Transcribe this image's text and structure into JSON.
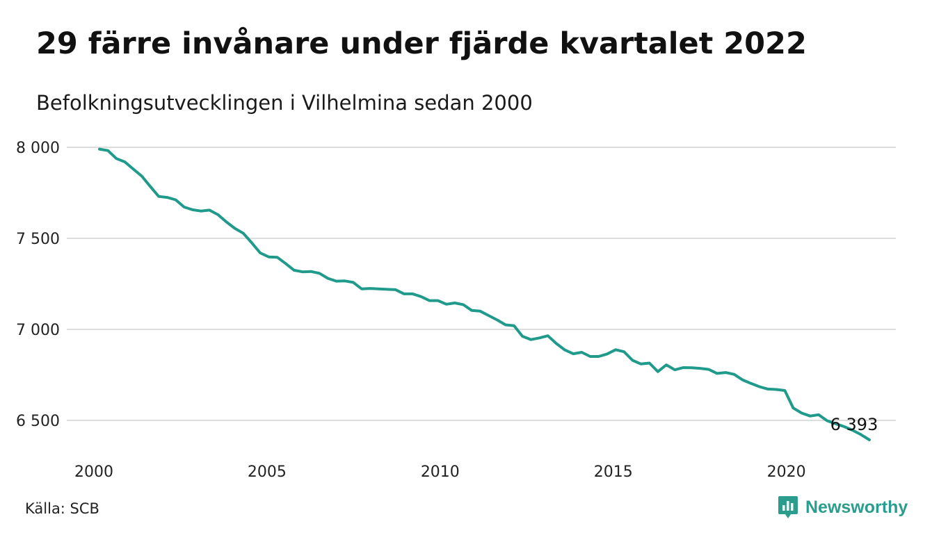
{
  "header": {
    "title": "29 färre invånare under fjärde kvartalet 2022",
    "subtitle": "Befolkningsutvecklingen i Vilhelmina sedan 2000"
  },
  "footer": {
    "source": "Källa: SCB",
    "brand": "Newsworthy",
    "brand_icon": "newsworthy-logo-icon",
    "brand_color": "#2a9d8f"
  },
  "chart_data": {
    "type": "line",
    "x_start": 2000.0,
    "x_step": 0.25,
    "xlim": [
      2000,
      2023
    ],
    "ylim": [
      6380,
      8030
    ],
    "yticks": [
      6500,
      7000,
      7500,
      8000
    ],
    "ytick_labels": [
      "6 500",
      "7 000",
      "7 500",
      "8 000"
    ],
    "xticks": [
      2000,
      2005,
      2010,
      2015,
      2020
    ],
    "xtick_labels": [
      "2000",
      "2005",
      "2010",
      "2015",
      "2020"
    ],
    "grid": true,
    "line_color": "#1f9a8b",
    "grid_color": "#dddddd",
    "end_label": "6 393",
    "values": [
      7990,
      7982,
      7938,
      7920,
      7880,
      7842,
      7785,
      7730,
      7725,
      7712,
      7672,
      7657,
      7650,
      7655,
      7630,
      7590,
      7555,
      7528,
      7475,
      7420,
      7398,
      7396,
      7362,
      7325,
      7316,
      7318,
      7308,
      7280,
      7265,
      7266,
      7258,
      7222,
      7225,
      7222,
      7220,
      7218,
      7195,
      7195,
      7180,
      7158,
      7158,
      7138,
      7145,
      7136,
      7104,
      7100,
      7076,
      7052,
      7025,
      7020,
      6962,
      6944,
      6953,
      6965,
      6922,
      6887,
      6866,
      6874,
      6851,
      6851,
      6865,
      6888,
      6877,
      6830,
      6810,
      6815,
      6768,
      6805,
      6778,
      6790,
      6789,
      6786,
      6780,
      6758,
      6763,
      6753,
      6723,
      6703,
      6685,
      6672,
      6670,
      6664,
      6568,
      6540,
      6524,
      6531,
      6498,
      6482,
      6466,
      6446,
      6422,
      6393
    ]
  }
}
